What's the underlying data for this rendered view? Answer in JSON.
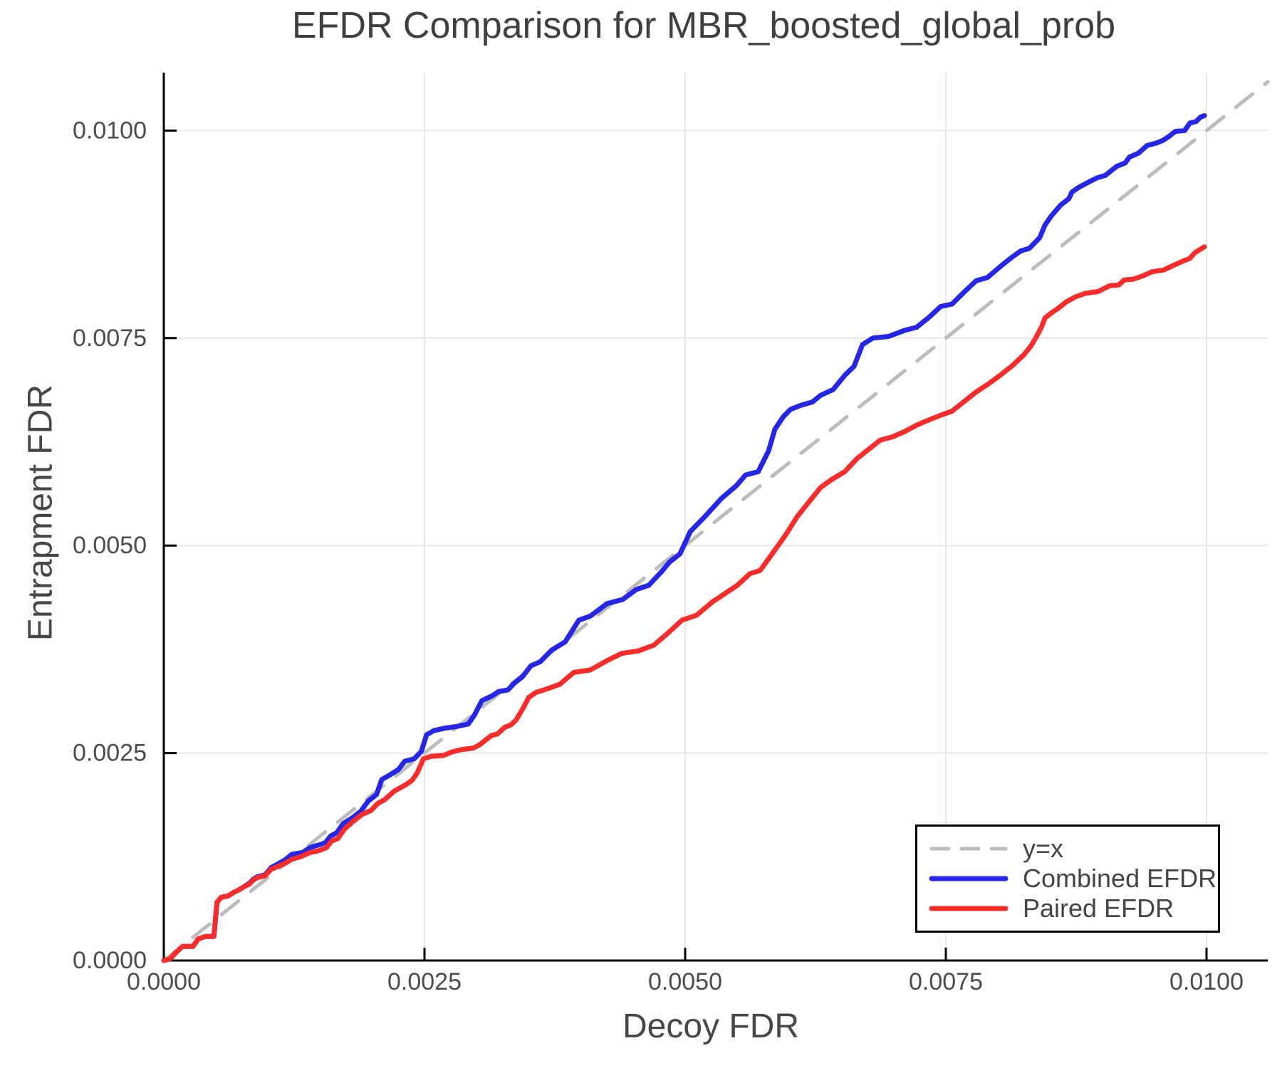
{
  "title": "EFDR Comparison for MBR_boosted_global_prob",
  "colors": {
    "background": "#ffffff",
    "grid": "#e8e8e8",
    "axis": "#000000",
    "tick_label": "#4c4c4c",
    "title_text": "#3f3f3f",
    "axis_label_text": "#474747",
    "legend_border": "#000000",
    "legend_text": "#444444",
    "diagonal": "#bcbcbc",
    "combined": "#2626e6",
    "paired": "#f92c2c"
  },
  "chart_data": {
    "type": "line",
    "title": "EFDR Comparison for MBR_boosted_global_prob",
    "xlabel": "Decoy FDR",
    "ylabel": "Entrapment FDR",
    "xlim": [
      0.0,
      0.0106
    ],
    "ylim": [
      0.0,
      0.0107
    ],
    "grid": true,
    "legend_position": "bottom-right",
    "x_ticks": [
      0.0,
      0.0025,
      0.005,
      0.0075,
      0.01
    ],
    "x_tick_labels": [
      "0.0000",
      "0.0025",
      "0.0050",
      "0.0075",
      "0.0100"
    ],
    "y_ticks": [
      0.0,
      0.0025,
      0.005,
      0.0075,
      0.01
    ],
    "y_tick_labels": [
      "0.0000",
      "0.0025",
      "0.0050",
      "0.0075",
      "0.0100"
    ],
    "series": [
      {
        "name": "y=x",
        "color": "#bcbcbc",
        "style": "dashed",
        "dash": "30 22",
        "width": 5,
        "points": [
          [
            0,
            0
          ],
          [
            0.010588,
            0.010588
          ]
        ]
      },
      {
        "name": "Combined EFDR",
        "color": "#2626e6",
        "style": "solid",
        "dash": "",
        "width": 7,
        "points": [
          [
            0,
            0
          ],
          [
            6e-05,
            2e-05
          ],
          [
            0.00012,
            0.0001
          ],
          [
            0.00018,
            0.00017
          ],
          [
            0.00028,
            0.00017
          ],
          [
            0.00033,
            0.00026
          ],
          [
            0.0004,
            0.00029
          ],
          [
            0.00048,
            0.00029
          ],
          [
            0.00051,
            0.0007
          ],
          [
            0.00055,
            0.00076
          ],
          [
            0.00062,
            0.00078
          ],
          [
            0.00067,
            0.00082
          ],
          [
            0.00072,
            0.00085
          ],
          [
            0.00077,
            0.00089
          ],
          [
            0.00082,
            0.00093
          ],
          [
            0.00086,
            0.00098
          ],
          [
            0.0009,
            0.00101
          ],
          [
            0.00097,
            0.00103
          ],
          [
            0.00103,
            0.00112
          ],
          [
            0.00109,
            0.00116
          ],
          [
            0.00116,
            0.00121
          ],
          [
            0.00123,
            0.00128
          ],
          [
            0.00133,
            0.0013
          ],
          [
            0.0014,
            0.00136
          ],
          [
            0.00148,
            0.00139
          ],
          [
            0.00155,
            0.00142
          ],
          [
            0.0016,
            0.0015
          ],
          [
            0.00166,
            0.00154
          ],
          [
            0.00172,
            0.00165
          ],
          [
            0.00181,
            0.00172
          ],
          [
            0.00189,
            0.0018
          ],
          [
            0.00196,
            0.00192
          ],
          [
            0.00204,
            0.002
          ],
          [
            0.00209,
            0.00218
          ],
          [
            0.00216,
            0.00223
          ],
          [
            0.00225,
            0.0023
          ],
          [
            0.00231,
            0.0024
          ],
          [
            0.0024,
            0.00243
          ],
          [
            0.00247,
            0.00252
          ],
          [
            0.00252,
            0.00272
          ],
          [
            0.00259,
            0.00277
          ],
          [
            0.0027,
            0.0028
          ],
          [
            0.00281,
            0.00282
          ],
          [
            0.00292,
            0.00285
          ],
          [
            0.00298,
            0.00296
          ],
          [
            0.00305,
            0.00313
          ],
          [
            0.00315,
            0.00319
          ],
          [
            0.00321,
            0.00324
          ],
          [
            0.0033,
            0.00326
          ],
          [
            0.00336,
            0.00334
          ],
          [
            0.00344,
            0.00342
          ],
          [
            0.00352,
            0.00355
          ],
          [
            0.00361,
            0.0036
          ],
          [
            0.00372,
            0.00374
          ],
          [
            0.00385,
            0.00384
          ],
          [
            0.00398,
            0.0041
          ],
          [
            0.00409,
            0.00415
          ],
          [
            0.00425,
            0.0043
          ],
          [
            0.0044,
            0.00435
          ],
          [
            0.00453,
            0.00447
          ],
          [
            0.00465,
            0.00452
          ],
          [
            0.00477,
            0.00468
          ],
          [
            0.00485,
            0.0048
          ],
          [
            0.00495,
            0.0049
          ],
          [
            0.00505,
            0.00517
          ],
          [
            0.00519,
            0.00535
          ],
          [
            0.00535,
            0.00557
          ],
          [
            0.00549,
            0.00572
          ],
          [
            0.00558,
            0.00585
          ],
          [
            0.0057,
            0.00589
          ],
          [
            0.0058,
            0.00614
          ],
          [
            0.00586,
            0.0064
          ],
          [
            0.00594,
            0.00655
          ],
          [
            0.00601,
            0.00664
          ],
          [
            0.00611,
            0.00669
          ],
          [
            0.00622,
            0.00673
          ],
          [
            0.0063,
            0.00681
          ],
          [
            0.00642,
            0.00688
          ],
          [
            0.00653,
            0.00705
          ],
          [
            0.00662,
            0.00716
          ],
          [
            0.0067,
            0.00742
          ],
          [
            0.0068,
            0.0075
          ],
          [
            0.00695,
            0.00752
          ],
          [
            0.0071,
            0.00759
          ],
          [
            0.00722,
            0.00763
          ],
          [
            0.00733,
            0.00774
          ],
          [
            0.00745,
            0.00788
          ],
          [
            0.00756,
            0.00791
          ],
          [
            0.00768,
            0.00806
          ],
          [
            0.00779,
            0.00819
          ],
          [
            0.0079,
            0.00823
          ],
          [
            0.00802,
            0.00836
          ],
          [
            0.00813,
            0.00847
          ],
          [
            0.00822,
            0.00855
          ],
          [
            0.0083,
            0.00858
          ],
          [
            0.0084,
            0.00871
          ],
          [
            0.00845,
            0.00886
          ],
          [
            0.00851,
            0.00897
          ],
          [
            0.0086,
            0.0091
          ],
          [
            0.00868,
            0.00918
          ],
          [
            0.00871,
            0.00926
          ],
          [
            0.00878,
            0.00932
          ],
          [
            0.00887,
            0.00938
          ],
          [
            0.00895,
            0.00943
          ],
          [
            0.00903,
            0.00946
          ],
          [
            0.00914,
            0.00957
          ],
          [
            0.00922,
            0.00961
          ],
          [
            0.00926,
            0.00968
          ],
          [
            0.00935,
            0.00973
          ],
          [
            0.00943,
            0.00982
          ],
          [
            0.00952,
            0.00985
          ],
          [
            0.00958,
            0.00988
          ],
          [
            0.00964,
            0.00993
          ],
          [
            0.0097,
            0.00999
          ],
          [
            0.00979,
            0.01
          ],
          [
            0.00984,
            0.01009
          ],
          [
            0.0099,
            0.01011
          ],
          [
            0.00994,
            0.01016
          ],
          [
            0.00998,
            0.01018
          ]
        ]
      },
      {
        "name": "Paired EFDR",
        "color": "#f92c2c",
        "style": "solid",
        "dash": "",
        "width": 7,
        "points": [
          [
            0,
            0
          ],
          [
            6e-05,
            2e-05
          ],
          [
            0.00012,
            0.0001
          ],
          [
            0.00018,
            0.00017
          ],
          [
            0.00028,
            0.00017
          ],
          [
            0.00033,
            0.00026
          ],
          [
            0.0004,
            0.00029
          ],
          [
            0.00048,
            0.00029
          ],
          [
            0.00051,
            0.0007
          ],
          [
            0.00055,
            0.00076
          ],
          [
            0.00062,
            0.00078
          ],
          [
            0.00067,
            0.00082
          ],
          [
            0.00072,
            0.00085
          ],
          [
            0.00077,
            0.00089
          ],
          [
            0.00082,
            0.00092
          ],
          [
            0.00086,
            0.00097
          ],
          [
            0.0009,
            0.001
          ],
          [
            0.00097,
            0.00102
          ],
          [
            0.00103,
            0.0011
          ],
          [
            0.00109,
            0.00113
          ],
          [
            0.00116,
            0.00117
          ],
          [
            0.00123,
            0.00122
          ],
          [
            0.00131,
            0.00125
          ],
          [
            0.0014,
            0.0013
          ],
          [
            0.00148,
            0.00132
          ],
          [
            0.00156,
            0.00136
          ],
          [
            0.00161,
            0.00144
          ],
          [
            0.00167,
            0.00147
          ],
          [
            0.00173,
            0.00158
          ],
          [
            0.00181,
            0.00167
          ],
          [
            0.0019,
            0.00176
          ],
          [
            0.00199,
            0.00181
          ],
          [
            0.00205,
            0.00189
          ],
          [
            0.00212,
            0.00194
          ],
          [
            0.00221,
            0.00204
          ],
          [
            0.00231,
            0.00211
          ],
          [
            0.00238,
            0.00217
          ],
          [
            0.00243,
            0.00226
          ],
          [
            0.00249,
            0.00243
          ],
          [
            0.00256,
            0.00246
          ],
          [
            0.00268,
            0.00247
          ],
          [
            0.00276,
            0.00251
          ],
          [
            0.00285,
            0.00254
          ],
          [
            0.00297,
            0.00256
          ],
          [
            0.00303,
            0.0026
          ],
          [
            0.00309,
            0.00266
          ],
          [
            0.00314,
            0.00271
          ],
          [
            0.0032,
            0.00273
          ],
          [
            0.00327,
            0.00281
          ],
          [
            0.00333,
            0.00284
          ],
          [
            0.00338,
            0.0029
          ],
          [
            0.00345,
            0.00305
          ],
          [
            0.0035,
            0.00317
          ],
          [
            0.00357,
            0.00323
          ],
          [
            0.00367,
            0.00327
          ],
          [
            0.0038,
            0.00333
          ],
          [
            0.00393,
            0.00347
          ],
          [
            0.00409,
            0.0035
          ],
          [
            0.00426,
            0.00362
          ],
          [
            0.00439,
            0.0037
          ],
          [
            0.00455,
            0.00373
          ],
          [
            0.0047,
            0.0038
          ],
          [
            0.00483,
            0.00394
          ],
          [
            0.00497,
            0.0041
          ],
          [
            0.00511,
            0.00416
          ],
          [
            0.00526,
            0.00432
          ],
          [
            0.00538,
            0.00442
          ],
          [
            0.0055,
            0.00452
          ],
          [
            0.00562,
            0.00466
          ],
          [
            0.00572,
            0.0047
          ],
          [
            0.00584,
            0.00491
          ],
          [
            0.00596,
            0.00512
          ],
          [
            0.00607,
            0.00534
          ],
          [
            0.00619,
            0.00553
          ],
          [
            0.0063,
            0.0057
          ],
          [
            0.00641,
            0.0058
          ],
          [
            0.00653,
            0.00589
          ],
          [
            0.00665,
            0.00605
          ],
          [
            0.00673,
            0.00613
          ],
          [
            0.00687,
            0.00627
          ],
          [
            0.00699,
            0.00631
          ],
          [
            0.0071,
            0.00637
          ],
          [
            0.00722,
            0.00645
          ],
          [
            0.00733,
            0.00651
          ],
          [
            0.00745,
            0.00657
          ],
          [
            0.00756,
            0.00662
          ],
          [
            0.00768,
            0.00674
          ],
          [
            0.00779,
            0.00685
          ],
          [
            0.0079,
            0.00694
          ],
          [
            0.00802,
            0.00705
          ],
          [
            0.00814,
            0.00717
          ],
          [
            0.00825,
            0.0073
          ],
          [
            0.00832,
            0.00741
          ],
          [
            0.00837,
            0.00752
          ],
          [
            0.00842,
            0.00764
          ],
          [
            0.00845,
            0.00774
          ],
          [
            0.00851,
            0.0078
          ],
          [
            0.00858,
            0.00786
          ],
          [
            0.00866,
            0.00794
          ],
          [
            0.00875,
            0.008
          ],
          [
            0.00884,
            0.00804
          ],
          [
            0.00896,
            0.00806
          ],
          [
            0.00907,
            0.00813
          ],
          [
            0.00916,
            0.00814
          ],
          [
            0.00921,
            0.0082
          ],
          [
            0.0093,
            0.00821
          ],
          [
            0.00939,
            0.00825
          ],
          [
            0.00948,
            0.0083
          ],
          [
            0.00959,
            0.00832
          ],
          [
            0.00969,
            0.00838
          ],
          [
            0.00978,
            0.00843
          ],
          [
            0.00984,
            0.00846
          ],
          [
            0.00989,
            0.00853
          ],
          [
            0.00998,
            0.0086
          ]
        ]
      }
    ]
  }
}
